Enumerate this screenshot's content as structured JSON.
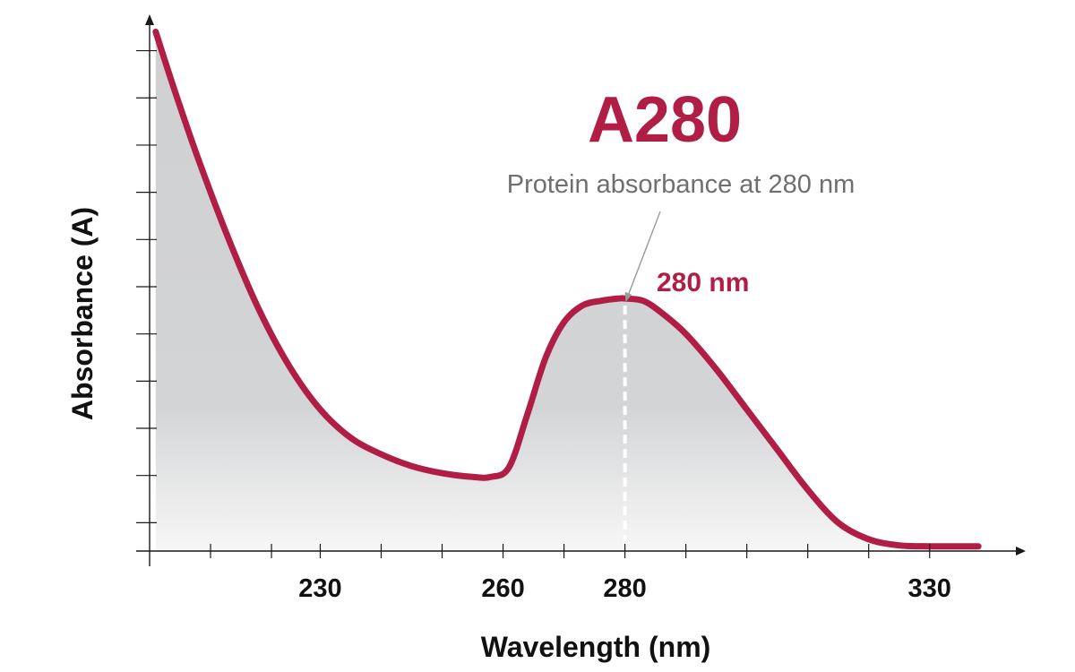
{
  "chart_data": {
    "type": "area",
    "title": "",
    "xlabel": "Wavelength (nm)",
    "ylabel": "Absorbance (A)",
    "xlim": [
      202,
      342
    ],
    "ylim": [
      0,
      11
    ],
    "x_tick_labels": [
      {
        "value": 230,
        "label": "230"
      },
      {
        "value": 260,
        "label": "260"
      },
      {
        "value": 280,
        "label": "280"
      },
      {
        "value": 330,
        "label": "330"
      }
    ],
    "x_minor_ticks": [
      212,
      222,
      230,
      240,
      250,
      260,
      270,
      280,
      290,
      300,
      310,
      320,
      330
    ],
    "y_minor_ticks": [
      0.6,
      1.6,
      2.6,
      3.6,
      4.6,
      5.6,
      6.6,
      7.6,
      8.6,
      9.6,
      10.6
    ],
    "grid": false,
    "series": [
      {
        "x": [
          203,
          206,
          210,
          215,
          220,
          225,
          230,
          235,
          240,
          245,
          250,
          255,
          258,
          261,
          264,
          267,
          270,
          273,
          276,
          279,
          280,
          283,
          286,
          290,
          295,
          300,
          305,
          310,
          315,
          320,
          325,
          330,
          335,
          338
        ],
        "values": [
          11.0,
          9.8,
          8.3,
          6.6,
          5.1,
          3.9,
          3.0,
          2.4,
          2.05,
          1.8,
          1.65,
          1.57,
          1.57,
          1.78,
          2.9,
          4.1,
          4.85,
          5.2,
          5.3,
          5.35,
          5.35,
          5.3,
          5.05,
          4.6,
          3.85,
          3.0,
          2.15,
          1.3,
          0.6,
          0.25,
          0.12,
          0.1,
          0.1,
          0.1
        ]
      }
    ],
    "annotation": {
      "heading": "A280",
      "text": "Protein absorbance at 280 nm",
      "peak_label": "280 nm",
      "peak_x": 280,
      "peak_y": 5.35
    },
    "colors": {
      "curve": "#b01e45",
      "fill_top": "#cfd0d2",
      "fill_bottom": "#f7f7f7",
      "axis": "#1a1a1a",
      "pointer": "#9a9a9a",
      "marker_line": "#ffffff"
    }
  }
}
